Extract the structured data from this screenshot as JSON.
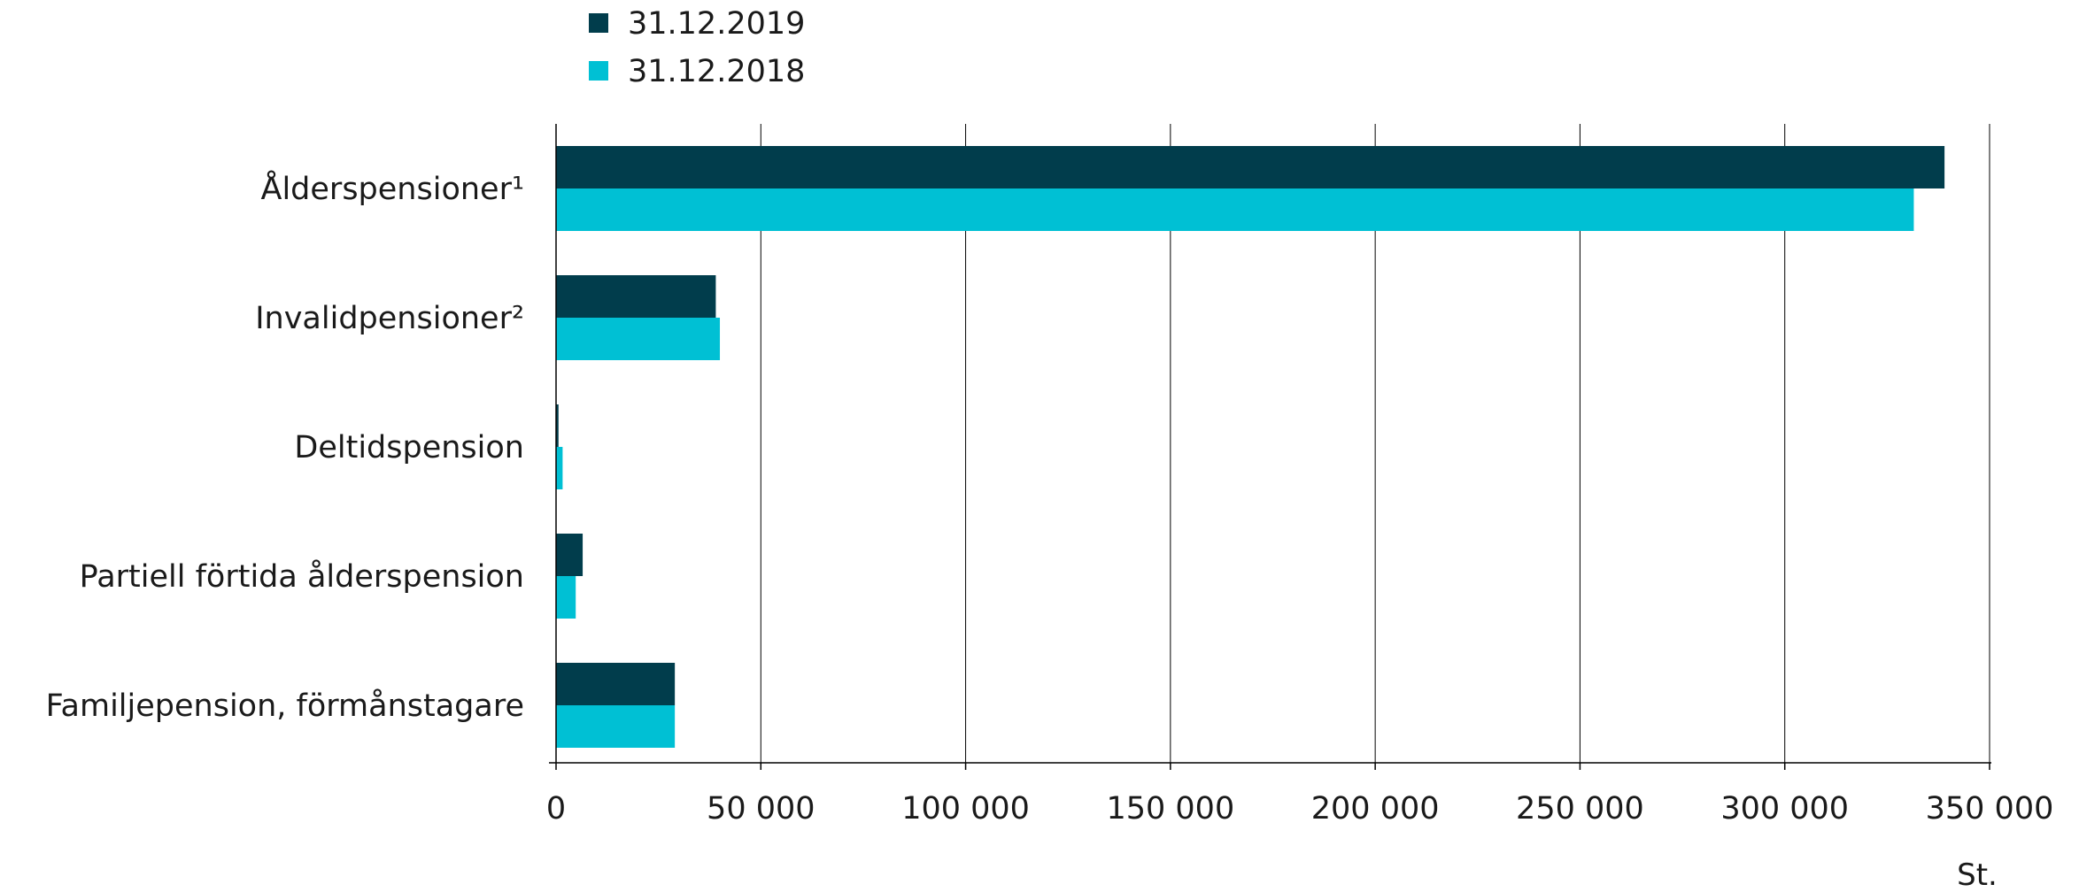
{
  "chart_data": {
    "type": "bar",
    "orientation": "horizontal",
    "categories": [
      "Ålderspensioner¹",
      "Invalidpensioner²",
      "Deltidspension",
      "Partiell förtida ålderspension",
      "Familjepension, förmånstagare"
    ],
    "series": [
      {
        "name": "31.12.2019",
        "color": "#013d4c",
        "values": [
          339000,
          39000,
          600,
          6500,
          29000
        ]
      },
      {
        "name": "31.12.2018",
        "color": "#00c0d4",
        "values": [
          331500,
          40000,
          1600,
          4800,
          29000
        ]
      }
    ],
    "xlim": [
      0,
      350000
    ],
    "xticks": [
      0,
      50000,
      100000,
      150000,
      200000,
      250000,
      300000,
      350000
    ],
    "xtick_labels": [
      "0",
      "50 000",
      "100 000",
      "150 000",
      "200 000",
      "250 000",
      "300 000",
      "350 000"
    ],
    "unit_label": "St.",
    "grid": "vertical",
    "legend_position": "top-left"
  }
}
